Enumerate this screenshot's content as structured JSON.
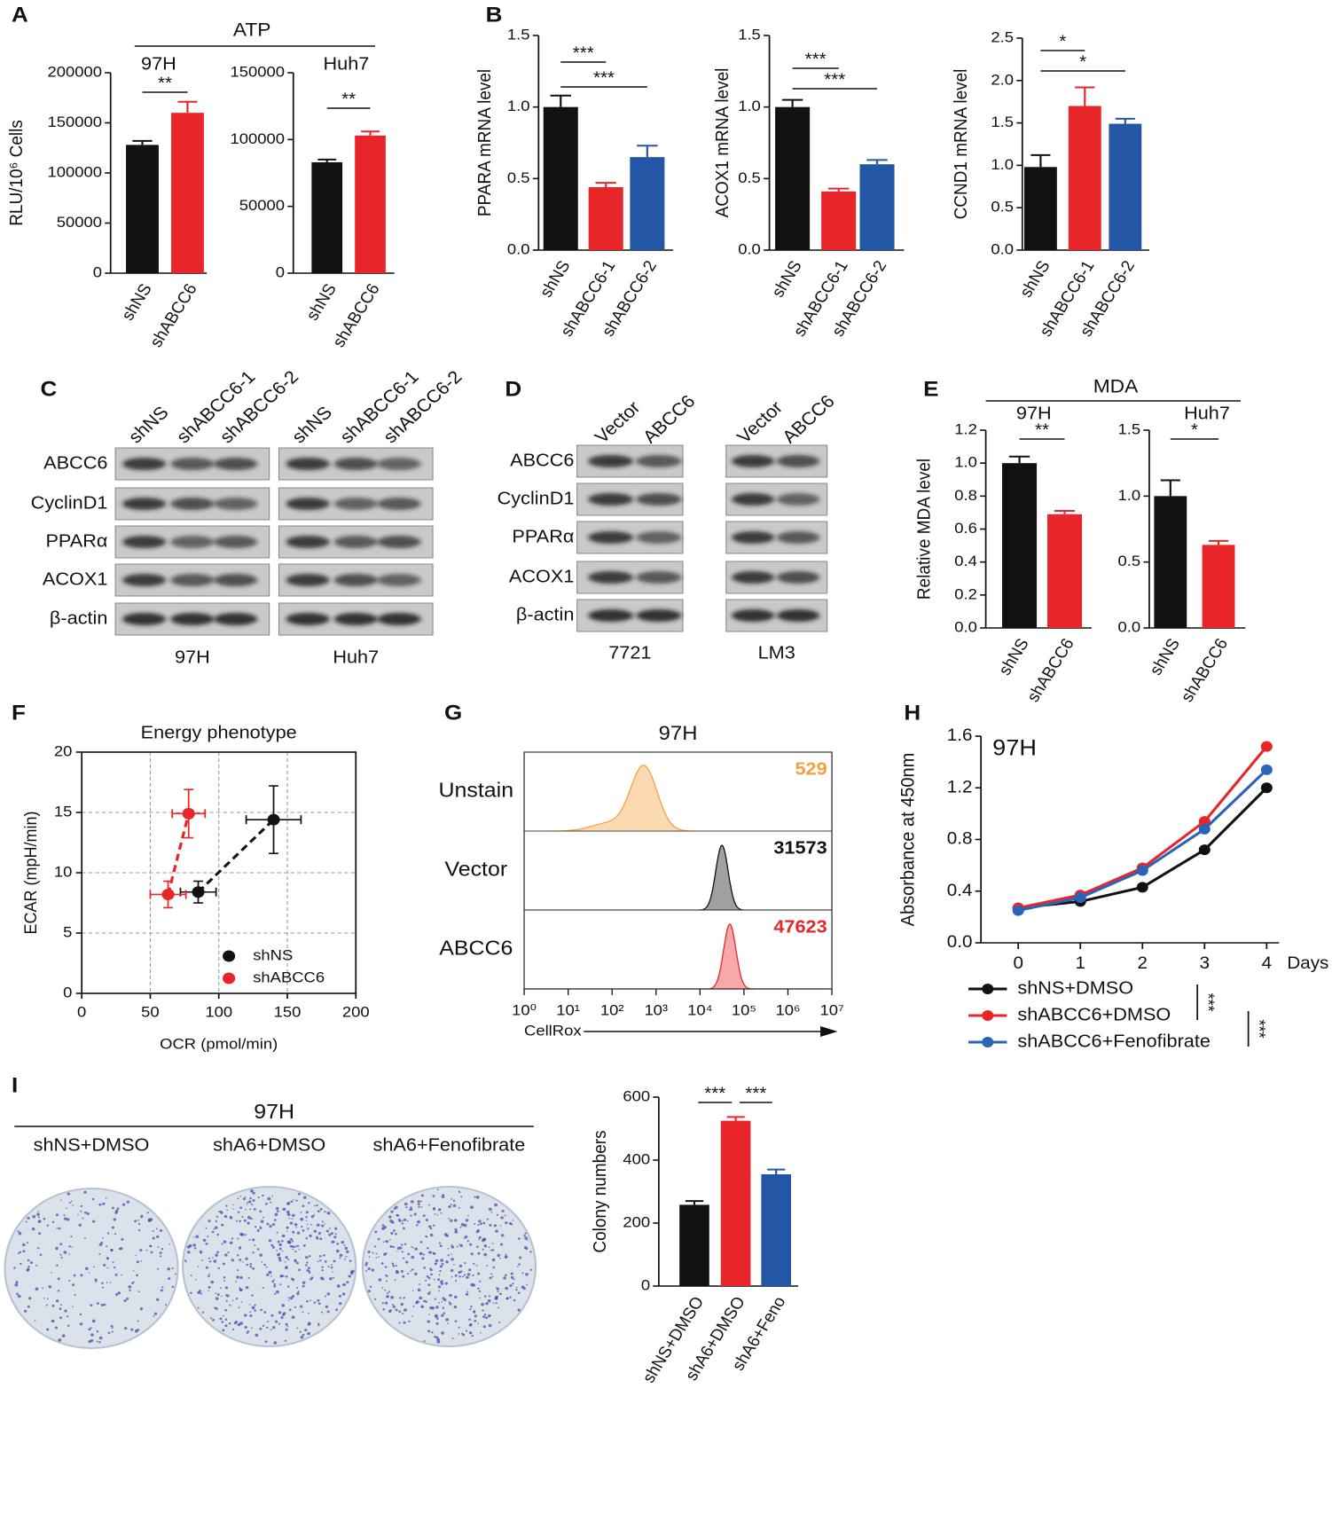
{
  "panels": [
    "A",
    "B",
    "C",
    "D",
    "E",
    "F",
    "G",
    "H",
    "I"
  ],
  "group_titles": [
    "ATP",
    "MDA"
  ],
  "chart_data": [
    {
      "type": "bar",
      "subtitle": "97H",
      "ylabel": "RLU/10⁶ Cells",
      "categories": [
        "shNS",
        "shABCC6"
      ],
      "values": [
        128000,
        160000
      ],
      "errors": [
        4000,
        11000
      ],
      "colors": [
        "#111111",
        "#e8262a"
      ],
      "ylim": [
        0,
        200000
      ],
      "yticks": [
        0,
        50000,
        100000,
        150000,
        200000
      ],
      "significance": [
        {
          "pair": [
            0,
            1
          ],
          "label": "**"
        }
      ]
    },
    {
      "type": "bar",
      "subtitle": "Huh7",
      "categories": [
        "shNS",
        "shABCC6"
      ],
      "values": [
        83000,
        103000
      ],
      "errors": [
        2000,
        3000
      ],
      "colors": [
        "#111111",
        "#e8262a"
      ],
      "ylim": [
        0,
        150000
      ],
      "yticks": [
        0,
        50000,
        100000,
        150000
      ],
      "significance": [
        {
          "pair": [
            0,
            1
          ],
          "label": "**"
        }
      ]
    },
    {
      "type": "bar",
      "ylabel": "PPARA mRNA level",
      "categories": [
        "shNS",
        "shABCC6-1",
        "shABCC6-2"
      ],
      "values": [
        1.0,
        0.44,
        0.65
      ],
      "errors": [
        0.08,
        0.03,
        0.08
      ],
      "colors": [
        "#111111",
        "#e8262a",
        "#2456a6"
      ],
      "ylim": [
        0,
        1.5
      ],
      "yticks": [
        {
          "value": 0,
          "label": "0.0"
        },
        0.5,
        {
          "value": 1,
          "label": "1.0"
        },
        1.5
      ],
      "significance": [
        {
          "pair": [
            0,
            1
          ],
          "label": "***"
        },
        {
          "pair": [
            0,
            2
          ],
          "label": "***"
        }
      ]
    },
    {
      "type": "bar",
      "ylabel": "ACOX1 mRNA level",
      "categories": [
        "shNS",
        "shABCC6-1",
        "shABCC6-2"
      ],
      "values": [
        1.0,
        0.41,
        0.6
      ],
      "errors": [
        0.05,
        0.02,
        0.03
      ],
      "colors": [
        "#111111",
        "#e8262a",
        "#2456a6"
      ],
      "ylim": [
        0,
        1.5
      ],
      "yticks": [
        {
          "value": 0,
          "label": "0.0"
        },
        0.5,
        {
          "value": 1,
          "label": "1.0"
        },
        1.5
      ],
      "significance": [
        {
          "pair": [
            0,
            1
          ],
          "label": "***"
        },
        {
          "pair": [
            0,
            2
          ],
          "label": "***"
        }
      ]
    },
    {
      "type": "bar",
      "ylabel": "CCND1 mRNA level",
      "categories": [
        "shNS",
        "shABCC6-1",
        "shABCC6-2"
      ],
      "values": [
        0.98,
        1.7,
        1.49
      ],
      "errors": [
        0.14,
        0.22,
        0.06
      ],
      "colors": [
        "#111111",
        "#e8262a",
        "#2456a6"
      ],
      "ylim": [
        0,
        2.5
      ],
      "yticks": [
        {
          "value": 0,
          "label": "0.0"
        },
        0.5,
        {
          "value": 1,
          "label": "1.0"
        },
        1.5,
        {
          "value": 2,
          "label": "2.0"
        },
        2.5
      ],
      "significance": [
        {
          "pair": [
            0,
            1
          ],
          "label": "*"
        },
        {
          "pair": [
            0,
            2
          ],
          "label": "*"
        }
      ]
    },
    {
      "type": "bar",
      "subtitle": "97H",
      "ylabel": "Relative MDA level",
      "categories": [
        "shNS",
        "shABCC6"
      ],
      "values": [
        1.0,
        0.69
      ],
      "errors": [
        0.04,
        0.02
      ],
      "colors": [
        "#111111",
        "#e8262a"
      ],
      "ylim": [
        0,
        1.2
      ],
      "yticks": [
        {
          "value": 0,
          "label": "0.0"
        },
        0.2,
        0.4,
        0.6,
        0.8,
        {
          "value": 1,
          "label": "1.0"
        },
        1.2
      ],
      "significance": [
        {
          "pair": [
            0,
            1
          ],
          "label": "**"
        }
      ]
    },
    {
      "type": "bar",
      "subtitle": "Huh7",
      "categories": [
        "shNS",
        "shABCC6"
      ],
      "values": [
        1.0,
        0.63
      ],
      "errors": [
        0.12,
        0.03
      ],
      "colors": [
        "#111111",
        "#e8262a"
      ],
      "ylim": [
        0,
        1.5
      ],
      "yticks": [
        {
          "value": 0,
          "label": "0.0"
        },
        0.5,
        {
          "value": 1,
          "label": "1.0"
        },
        1.5
      ],
      "significance": [
        {
          "pair": [
            0,
            1
          ],
          "label": "*"
        }
      ]
    },
    {
      "type": "scatter",
      "title": "Energy phenotype",
      "xlabel": "OCR (pmol/min)",
      "ylabel": "ECAR (mpH/min)",
      "xlim": [
        0,
        200
      ],
      "xticks": [
        0,
        50,
        100,
        150,
        200
      ],
      "ylim": [
        0,
        20
      ],
      "yticks": [
        0,
        5,
        10,
        15,
        20
      ],
      "grid": true,
      "legend": "lower right",
      "series": [
        {
          "name": "shNS",
          "color": "#111111",
          "x": [
            85,
            140
          ],
          "values": [
            8.4,
            14.4
          ],
          "xerr": [
            13,
            20
          ],
          "yerr": [
            0.9,
            2.8
          ]
        },
        {
          "name": "shABCC6",
          "color": "#e8262a",
          "x": [
            63,
            78
          ],
          "values": [
            8.2,
            14.9
          ],
          "xerr": [
            13,
            12
          ],
          "yerr": [
            1.1,
            2.0
          ]
        }
      ]
    },
    {
      "type": "flow",
      "title": "97H",
      "xlabel": "CellRox",
      "log": true,
      "xlim": [
        1,
        10000000
      ],
      "xticks": [
        {
          "value": 1,
          "label": "10⁰"
        },
        {
          "value": 10,
          "label": "10¹"
        },
        {
          "value": 100,
          "label": "10²"
        },
        {
          "value": 1000,
          "label": "10³"
        },
        {
          "value": 10000,
          "label": "10⁴"
        },
        {
          "value": 100000,
          "label": "10⁵"
        },
        {
          "value": 1000000,
          "label": "10⁶"
        },
        {
          "value": 10000000,
          "label": "10⁷"
        }
      ],
      "series": [
        {
          "name": "Unstain",
          "color": "#f5a040",
          "value": 529
        },
        {
          "name": "Vector",
          "color": "#111111",
          "value": 31573
        },
        {
          "name": "ABCC6",
          "color": "#e8262a",
          "value": 47623
        }
      ]
    },
    {
      "type": "line",
      "annotation": "97H",
      "ylabel": "Absorbance at 450nm",
      "xlabel": "Days",
      "x": [
        0,
        1,
        2,
        3,
        4
      ],
      "xlim": [
        -0.6,
        4.2
      ],
      "xticks": [
        0,
        1,
        2,
        3,
        4
      ],
      "ylim": [
        0,
        1.6
      ],
      "yticks": [
        {
          "value": 0,
          "label": "0.0"
        },
        0.4,
        0.8,
        1.2,
        1.6
      ],
      "series": [
        {
          "name": "shNS+DMSO",
          "color": "#111111",
          "values": [
            0.27,
            0.32,
            0.43,
            0.72,
            1.2
          ]
        },
        {
          "name": "shABCC6+DMSO",
          "color": "#e8262a",
          "values": [
            0.27,
            0.37,
            0.58,
            0.94,
            1.52
          ]
        },
        {
          "name": "shABCC6+Fenofibrate",
          "color": "#2a64b8",
          "values": [
            0.25,
            0.35,
            0.56,
            0.88,
            1.34
          ]
        }
      ],
      "significance": [
        {
          "pair": [
            0,
            1
          ],
          "label": "***"
        },
        {
          "pair": [
            1,
            2
          ],
          "label": "***"
        }
      ]
    },
    {
      "type": "bar",
      "ylabel": "Colony numbers",
      "categories": [
        "shNS+DMSO",
        "shA6+DMSO",
        "shA6+Feno"
      ],
      "values": [
        258,
        525,
        355
      ],
      "errors": [
        12,
        12,
        15
      ],
      "colors": [
        "#111111",
        "#e8262a",
        "#2456a6"
      ],
      "ylim": [
        0,
        600
      ],
      "yticks": [
        0,
        200,
        400,
        600
      ],
      "significance": [
        {
          "pair": [
            0,
            1
          ],
          "label": "***"
        },
        {
          "pair": [
            1,
            2
          ],
          "label": "***"
        }
      ]
    }
  ],
  "blots": [
    {
      "lanes": [
        "shNS",
        "shABCC6-1",
        "shABCC6-2"
      ],
      "proteins": [
        "ABCC6",
        "CyclinD1",
        "PPARα",
        "ACOX1",
        "β-actin"
      ],
      "cell_lines": [
        "97H",
        "Huh7"
      ]
    },
    {
      "lanes": [
        "Vector",
        "ABCC6"
      ],
      "proteins": [
        "ABCC6",
        "CyclinD1",
        "PPARα",
        "ACOX1",
        "β-actin"
      ],
      "cell_lines": [
        "7721",
        "LM3"
      ]
    }
  ],
  "colony": {
    "title": "97H",
    "labels": [
      "shNS+DMSO",
      "shA6+DMSO",
      "shA6+Fenofibrate"
    ]
  }
}
